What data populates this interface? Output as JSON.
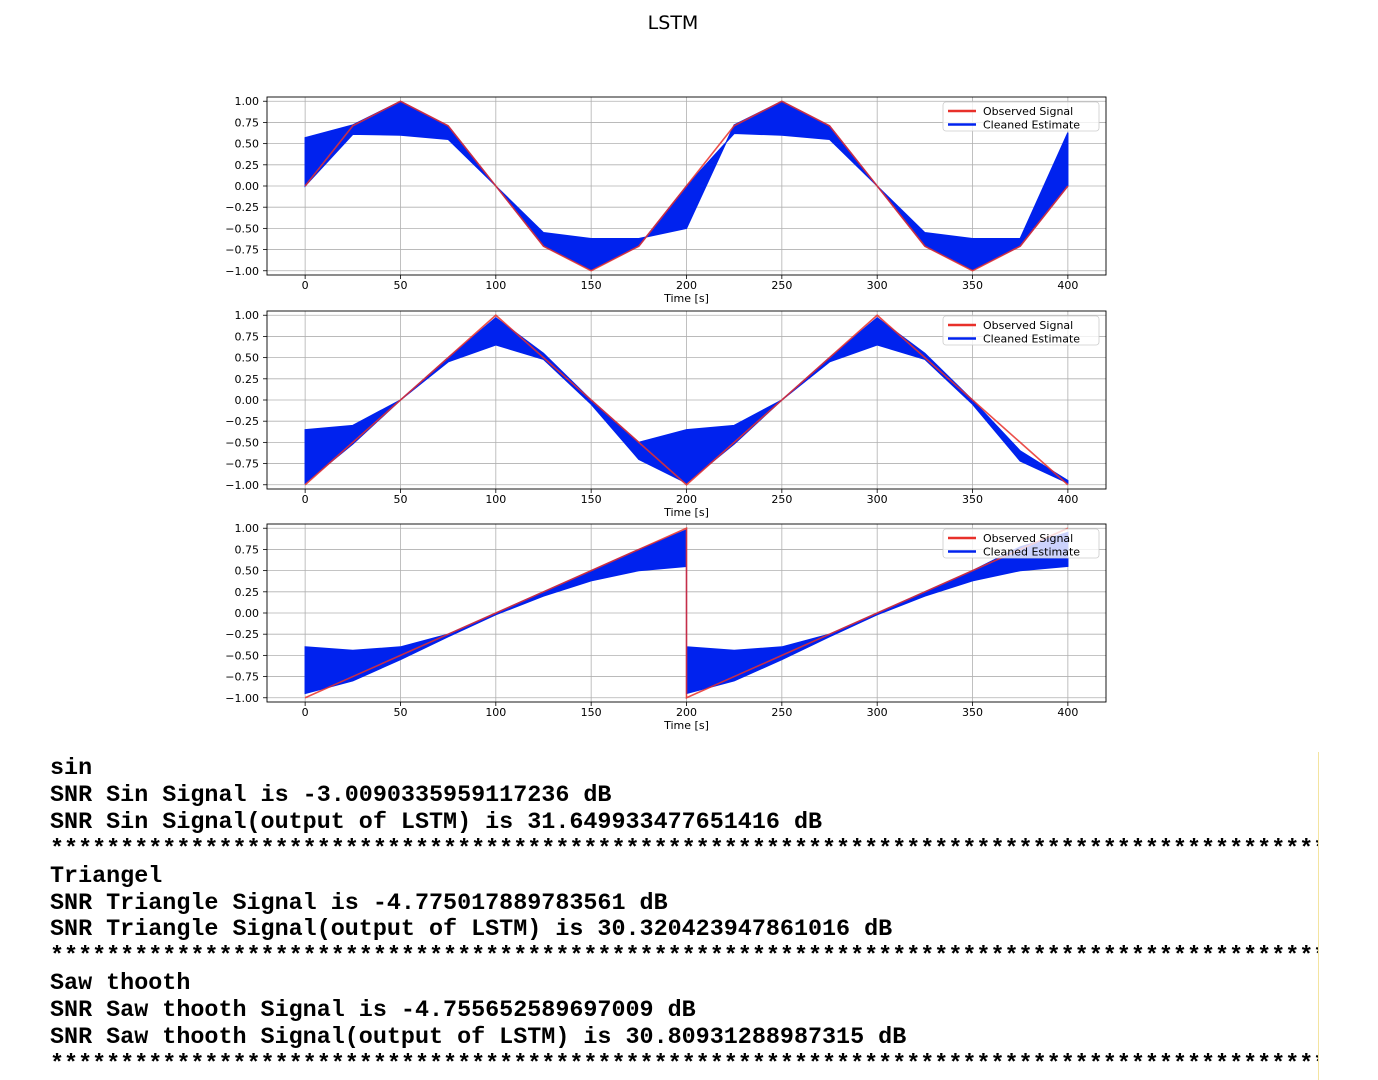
{
  "title": "LSTM",
  "chart_data": [
    {
      "type": "line",
      "signal": "sine",
      "xlabel": "Time [s]",
      "ylabel": "",
      "xlim": [
        -20,
        420
      ],
      "ylim": [
        -1.05,
        1.05
      ],
      "xticks": [
        0,
        50,
        100,
        150,
        200,
        250,
        300,
        350,
        400
      ],
      "yticks": [
        1.0,
        0.75,
        0.5,
        0.25,
        0.0,
        -0.25,
        -0.5,
        -0.75,
        -1.0
      ],
      "ytick_labels": [
        "1.00",
        "0.75",
        "0.50",
        "0.25",
        "0.00",
        "−0.25",
        "−0.50",
        "−0.75",
        "−1.00"
      ],
      "grid": true,
      "legend_position": "top-right",
      "series": [
        {
          "name": "Observed Signal",
          "color": "#e8302a"
        },
        {
          "name": "Cleaned Estimate",
          "color": "#0022ee"
        }
      ],
      "x": [
        0,
        25,
        50,
        75,
        100,
        125,
        150,
        175,
        200,
        225,
        250,
        275,
        300,
        325,
        350,
        375,
        400
      ],
      "observed": [
        0.0,
        0.71,
        1.0,
        0.71,
        0.0,
        -0.71,
        -1.0,
        -0.71,
        0.0,
        0.71,
        1.0,
        0.71,
        0.0,
        -0.71,
        -1.0,
        -0.71,
        0.0
      ],
      "estimate_upper": [
        0.57,
        0.72,
        1.0,
        0.71,
        0.0,
        -0.55,
        -0.62,
        -0.62,
        -0.5,
        0.72,
        1.0,
        0.71,
        0.0,
        -0.55,
        -0.62,
        -0.62,
        0.63
      ],
      "estimate_lower": [
        0.0,
        0.61,
        0.6,
        0.55,
        0.0,
        -0.71,
        -0.99,
        -0.71,
        0.0,
        0.62,
        0.6,
        0.55,
        0.0,
        -0.71,
        -0.99,
        -0.71,
        0.0
      ]
    },
    {
      "type": "line",
      "signal": "triangle",
      "xlabel": "Time [s]",
      "ylabel": "",
      "xlim": [
        -20,
        420
      ],
      "ylim": [
        -1.05,
        1.05
      ],
      "xticks": [
        0,
        50,
        100,
        150,
        200,
        250,
        300,
        350,
        400
      ],
      "yticks": [
        1.0,
        0.75,
        0.5,
        0.25,
        0.0,
        -0.25,
        -0.5,
        -0.75,
        -1.0
      ],
      "ytick_labels": [
        "1.00",
        "0.75",
        "0.50",
        "0.25",
        "0.00",
        "−0.25",
        "−0.50",
        "−0.75",
        "−1.00"
      ],
      "grid": true,
      "legend_position": "top-right",
      "series": [
        {
          "name": "Observed Signal",
          "color": "#e8302a"
        },
        {
          "name": "Cleaned Estimate",
          "color": "#0022ee"
        }
      ],
      "x": [
        0,
        25,
        50,
        75,
        100,
        125,
        150,
        175,
        200,
        225,
        250,
        275,
        300,
        325,
        350,
        375,
        400
      ],
      "observed": [
        -1.0,
        -0.5,
        0.0,
        0.5,
        1.0,
        0.5,
        0.0,
        -0.5,
        -1.0,
        -0.5,
        0.0,
        0.5,
        1.0,
        0.5,
        0.0,
        -0.5,
        -1.0
      ],
      "estimate_upper": [
        -0.35,
        -0.3,
        0.0,
        0.5,
        0.97,
        0.55,
        0.0,
        -0.5,
        -0.35,
        -0.3,
        0.0,
        0.5,
        0.97,
        0.55,
        0.0,
        -0.6,
        -0.95
      ],
      "estimate_lower": [
        -0.98,
        -0.52,
        0.0,
        0.45,
        0.65,
        0.48,
        -0.05,
        -0.7,
        -0.98,
        -0.52,
        0.0,
        0.45,
        0.65,
        0.48,
        -0.05,
        -0.72,
        -0.98
      ]
    },
    {
      "type": "line",
      "signal": "sawtooth",
      "xlabel": "Time [s]",
      "ylabel": "",
      "xlim": [
        -20,
        420
      ],
      "ylim": [
        -1.05,
        1.05
      ],
      "xticks": [
        0,
        50,
        100,
        150,
        200,
        250,
        300,
        350,
        400
      ],
      "yticks": [
        1.0,
        0.75,
        0.5,
        0.25,
        0.0,
        -0.25,
        -0.5,
        -0.75,
        -1.0
      ],
      "ytick_labels": [
        "1.00",
        "0.75",
        "0.50",
        "0.25",
        "0.00",
        "−0.25",
        "−0.50",
        "−0.75",
        "−1.00"
      ],
      "grid": true,
      "legend_position": "top-right",
      "series": [
        {
          "name": "Observed Signal",
          "color": "#e8302a"
        },
        {
          "name": "Cleaned Estimate",
          "color": "#0022ee"
        }
      ],
      "x": [
        0,
        25,
        50,
        75,
        100,
        125,
        150,
        175,
        200,
        200,
        225,
        250,
        275,
        300,
        325,
        350,
        375,
        400
      ],
      "observed": [
        -1.0,
        -0.75,
        -0.5,
        -0.25,
        0.0,
        0.25,
        0.5,
        0.75,
        1.0,
        -1.0,
        -0.75,
        -0.5,
        -0.25,
        0.0,
        0.25,
        0.5,
        0.75,
        1.0
      ],
      "estimate_upper": [
        -0.4,
        -0.44,
        -0.4,
        -0.25,
        0.0,
        0.25,
        0.5,
        0.75,
        0.98,
        -0.4,
        -0.44,
        -0.4,
        -0.25,
        0.0,
        0.25,
        0.5,
        0.78,
        0.95
      ],
      "estimate_lower": [
        -0.95,
        -0.8,
        -0.55,
        -0.28,
        -0.02,
        0.2,
        0.38,
        0.5,
        0.55,
        -0.95,
        -0.8,
        -0.55,
        -0.28,
        -0.02,
        0.2,
        0.38,
        0.5,
        0.55
      ]
    }
  ],
  "console": {
    "lines": [
      "sin",
      "SNR Sin Signal is -3.0090335959117236 dB",
      "SNR Sin Signal(output of LSTM) is 31.649933477651416 dB",
      "****************************************************************************************************",
      "Triangel",
      "SNR Triangle Signal is -4.775017889783561 dB",
      "SNR Triangle Signal(output of LSTM) is 30.320423947861016 dB",
      "****************************************************************************************************",
      "Saw thooth",
      "SNR Saw thooth Signal is -4.755652589697009 dB",
      "SNR Saw thooth Signal(output of LSTM) is 30.80931288987315 dB",
      "****************************************************************************************************"
    ]
  }
}
